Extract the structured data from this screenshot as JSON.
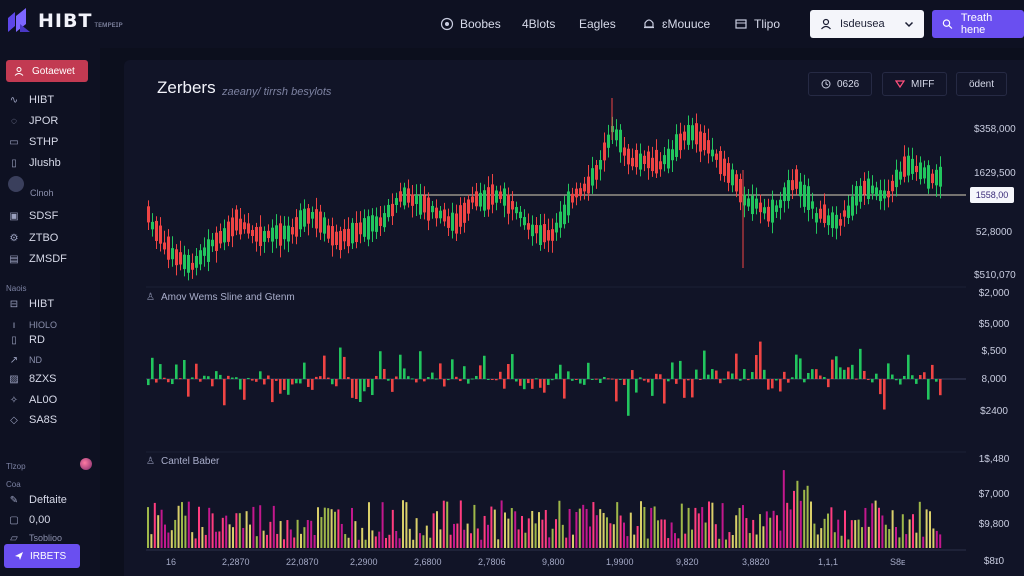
{
  "app": {
    "logo_text": "HIBT",
    "logo_sub": "ᴛᴇᴍᴘᴇɪᴘ"
  },
  "nav": [
    {
      "label": "Boobes",
      "icon": "circle-icon"
    },
    {
      "label": "4Blots",
      "icon": ""
    },
    {
      "label": "Eagles",
      "icon": ""
    },
    {
      "label": "ɛMouuce",
      "icon": "bell-icon"
    },
    {
      "label": "Tlipo",
      "icon": "wallet-icon"
    }
  ],
  "header": {
    "user_label": "Isdeusea",
    "trade_label": "Treath hene"
  },
  "sidebar": {
    "primary_label": "Gotaewet",
    "items": [
      {
        "label": "HIBT",
        "icon": "wave-icon"
      },
      {
        "label": "JPOR",
        "icon": "chat-icon"
      },
      {
        "label": "STHP",
        "icon": "card-icon"
      },
      {
        "label": "Jlushb",
        "icon": "doc-icon"
      }
    ],
    "avatar_caption": "Clnoh",
    "items2": [
      {
        "label": "SDSF",
        "icon": "grid-icon"
      },
      {
        "label": "ZTBO",
        "icon": "gear-icon"
      },
      {
        "label": "ZMSDF",
        "icon": "monitor-icon"
      }
    ],
    "section1": "Naois",
    "items3": [
      {
        "label": "HIBT",
        "icon": "bag-icon"
      },
      {
        "label": "HIOLO",
        "icon": "bar-icon",
        "small": true
      },
      {
        "label": "RD",
        "icon": "doc-icon"
      },
      {
        "label": "ND",
        "icon": "arrow-icon",
        "small": true
      },
      {
        "label": "8ZXS",
        "icon": "chart-icon"
      },
      {
        "label": "AL0O",
        "icon": "star-icon"
      },
      {
        "label": "SA8S",
        "icon": "gem-icon"
      }
    ],
    "section2": "Tlzop",
    "section3": "Coa",
    "items4": [
      {
        "label": "Deftaite",
        "icon": "pen-icon"
      },
      {
        "label": "0,00",
        "icon": "square-icon"
      },
      {
        "label": "Tsoblioo",
        "icon": "folder-icon",
        "small": true
      }
    ],
    "bottom_label": "IRBETS"
  },
  "panel": {
    "title": "Zerbers",
    "subtitle": "zaeany/ tirrsh besylots",
    "chips": [
      {
        "label": "0626",
        "icon": "clock-icon"
      },
      {
        "label": "MIFF",
        "icon": "heart-icon"
      },
      {
        "label": "ödent",
        "icon": ""
      }
    ],
    "section_main": "Amov Wems Sline and Gtenm",
    "section_volume": "Cantel Baber"
  },
  "axis": {
    "price": [
      "$358,000",
      "1629,500",
      "52,8000",
      "$510,070"
    ],
    "current_price": "1558,00",
    "mid": [
      "$2,000",
      "$5,000",
      "$,500",
      "8,000",
      "$2400"
    ],
    "volume": [
      "1$,480",
      "$7,000",
      "$9,800",
      "$8ɪ0"
    ],
    "x": [
      "16",
      "2,2870",
      "22,0870",
      "2,2900",
      "2,6800",
      "2,7806",
      "9,800",
      "1,9900",
      "9,820",
      "3,8820",
      "1,1,1",
      "S8ᴇ"
    ]
  },
  "colors": {
    "up": "#22c55e",
    "down": "#ef4444",
    "accent": "#6a4ff0",
    "primary_red": "#c23a52"
  },
  "chart_data": {
    "type": "candlestick",
    "panes": [
      "price",
      "oscillator",
      "volume"
    ],
    "current_price_label": "1558,00"
  }
}
